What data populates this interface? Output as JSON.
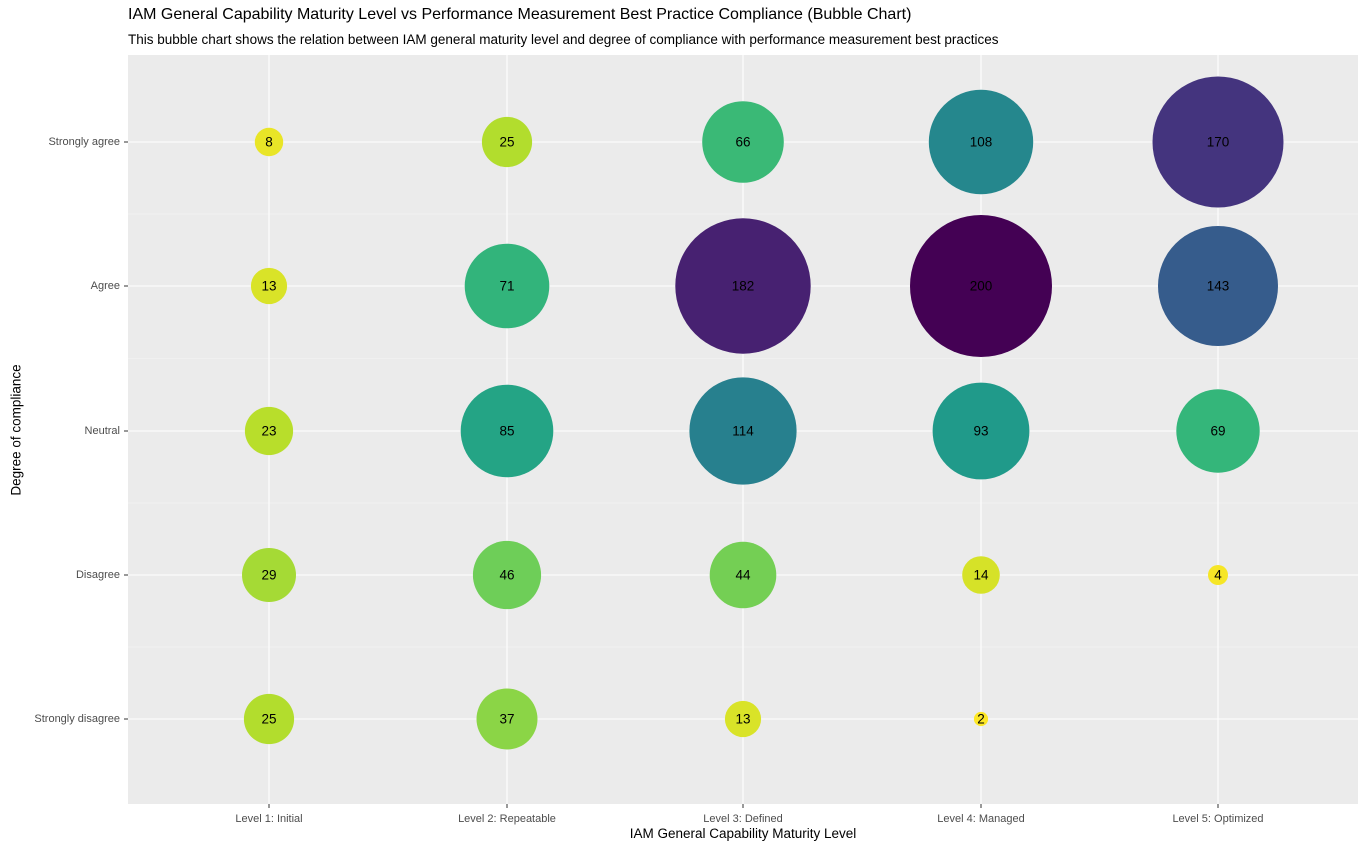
{
  "chart_data": {
    "type": "bubble",
    "title": "IAM General Capability Maturity Level vs Performance Measurement Best Practice Compliance (Bubble Chart)",
    "subtitle": "This bubble chart shows the relation between IAM general maturity level and degree of compliance with performance measurement best practices",
    "xlabel": "IAM General Capability Maturity Level",
    "ylabel": "Degree of compliance",
    "x_categories": [
      "Level 1: Initial",
      "Level 2: Repeatable",
      "Level 3: Defined",
      "Level 4: Managed",
      "Level 5: Optimized"
    ],
    "y_categories": [
      "Strongly agree",
      "Agree",
      "Neutral",
      "Disagree",
      "Strongly disagree"
    ],
    "color_scale": "viridis (reversed: low = yellow, high = purple)",
    "grid": true,
    "legend": "none",
    "points": [
      {
        "x": "Level 1: Initial",
        "y": "Strongly agree",
        "value": 8
      },
      {
        "x": "Level 1: Initial",
        "y": "Agree",
        "value": 13
      },
      {
        "x": "Level 1: Initial",
        "y": "Neutral",
        "value": 23
      },
      {
        "x": "Level 1: Initial",
        "y": "Disagree",
        "value": 29
      },
      {
        "x": "Level 1: Initial",
        "y": "Strongly disagree",
        "value": 25
      },
      {
        "x": "Level 2: Repeatable",
        "y": "Strongly agree",
        "value": 25
      },
      {
        "x": "Level 2: Repeatable",
        "y": "Agree",
        "value": 71
      },
      {
        "x": "Level 2: Repeatable",
        "y": "Neutral",
        "value": 85
      },
      {
        "x": "Level 2: Repeatable",
        "y": "Disagree",
        "value": 46
      },
      {
        "x": "Level 2: Repeatable",
        "y": "Strongly disagree",
        "value": 37
      },
      {
        "x": "Level 3: Defined",
        "y": "Strongly agree",
        "value": 66
      },
      {
        "x": "Level 3: Defined",
        "y": "Agree",
        "value": 182
      },
      {
        "x": "Level 3: Defined",
        "y": "Neutral",
        "value": 114
      },
      {
        "x": "Level 3: Defined",
        "y": "Disagree",
        "value": 44
      },
      {
        "x": "Level 3: Defined",
        "y": "Strongly disagree",
        "value": 13
      },
      {
        "x": "Level 4: Managed",
        "y": "Strongly agree",
        "value": 108
      },
      {
        "x": "Level 4: Managed",
        "y": "Agree",
        "value": 200
      },
      {
        "x": "Level 4: Managed",
        "y": "Neutral",
        "value": 93
      },
      {
        "x": "Level 4: Managed",
        "y": "Disagree",
        "value": 14
      },
      {
        "x": "Level 4: Managed",
        "y": "Strongly disagree",
        "value": 2
      },
      {
        "x": "Level 5: Optimized",
        "y": "Strongly agree",
        "value": 170
      },
      {
        "x": "Level 5: Optimized",
        "y": "Agree",
        "value": 143
      },
      {
        "x": "Level 5: Optimized",
        "y": "Neutral",
        "value": 69
      },
      {
        "x": "Level 5: Optimized",
        "y": "Disagree",
        "value": 4
      }
    ]
  }
}
